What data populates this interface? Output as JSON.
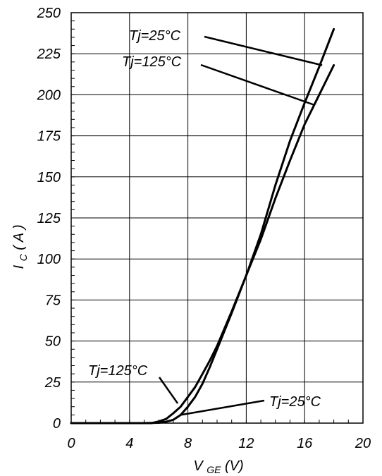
{
  "chart_data": {
    "type": "line",
    "xlabel_main": "V",
    "xlabel_sub": "GE",
    "xlabel_unit": " (V)",
    "ylabel_main": "I",
    "ylabel_sub": "C",
    "ylabel_unit": " ( A )",
    "xlim": [
      0,
      20
    ],
    "ylim": [
      0,
      250
    ],
    "x_ticks": [
      "0",
      "4",
      "8",
      "12",
      "16",
      "20"
    ],
    "y_ticks": [
      "0",
      "25",
      "50",
      "75",
      "100",
      "125",
      "150",
      "175",
      "200",
      "225",
      "250"
    ],
    "grid": true,
    "series": [
      {
        "name": "Tj=25°C",
        "x": [
          0,
          5,
          6,
          6.5,
          7,
          7.5,
          8,
          8.5,
          9,
          9.5,
          10,
          11,
          12,
          13,
          14,
          15,
          16,
          17,
          18
        ],
        "y": [
          0,
          0,
          0.2,
          0.8,
          2,
          5,
          10,
          16,
          24,
          34,
          45,
          67,
          90,
          115,
          145,
          172,
          195,
          217,
          240
        ]
      },
      {
        "name": "Tj=125°C",
        "x": [
          0,
          5.5,
          6,
          6.5,
          7,
          7.5,
          8,
          8.5,
          9,
          9.5,
          10,
          11,
          12,
          13,
          14,
          15,
          16,
          17,
          18
        ],
        "y": [
          0,
          0,
          1,
          2.5,
          6,
          10,
          16,
          22,
          30,
          38,
          47,
          68,
          90,
          112,
          137,
          160,
          182,
          200,
          218
        ]
      }
    ],
    "annotations": [
      {
        "text": "Tj=25°C",
        "series": "Tj=25°C",
        "x": 17.2,
        "y": 218
      },
      {
        "text": "Tj=125°C",
        "series": "Tj=125°C",
        "x": 16.6,
        "y": 194
      },
      {
        "text": "Tj=125°C",
        "series": "Tj=125°C",
        "x": 7.3,
        "y": 12
      },
      {
        "text": "Tj=25°C",
        "series": "Tj=25°C",
        "x": 7.5,
        "y": 5
      }
    ]
  }
}
